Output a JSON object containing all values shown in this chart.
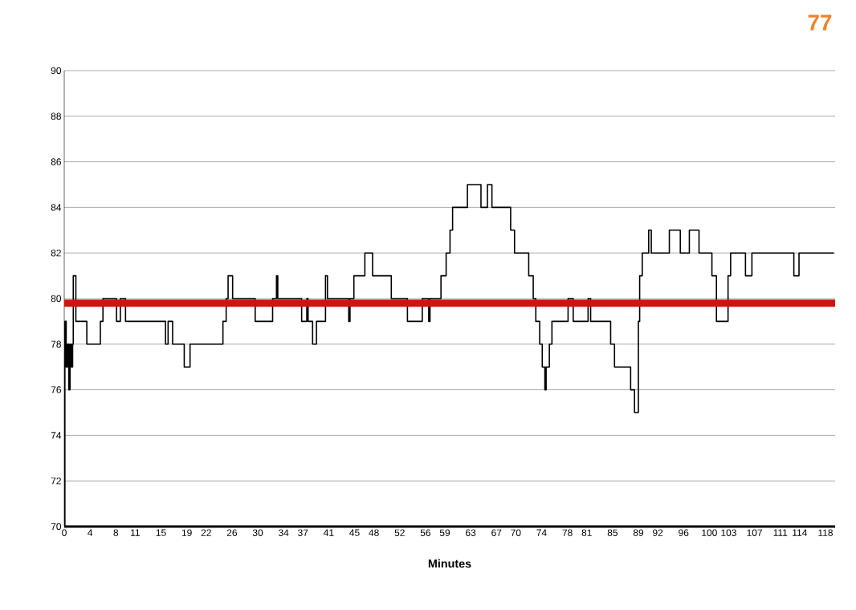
{
  "chart_data": {
    "type": "step",
    "xlabel": "Minutes",
    "annotations": [
      "77"
    ],
    "x": [
      0,
      0.1,
      0.3,
      0.5,
      0.7,
      0.9,
      1.1,
      1.3,
      1.4,
      1.8,
      3.5,
      5.6,
      6.0,
      8.1,
      8.7,
      9.5,
      15.7,
      16.1,
      16.8,
      18.6,
      19.5,
      24.6,
      25.1,
      25.4,
      26.1,
      29.6,
      32.3,
      32.9,
      33.1,
      36.8,
      37.6,
      37.8,
      38.5,
      39.1,
      40.5,
      40.8,
      44.1,
      44.3,
      44.9,
      46.6,
      47.8,
      50.7,
      53.2,
      55.5,
      56.5,
      56.7,
      58.4,
      59.2,
      59.8,
      60.2,
      62.5,
      64.6,
      65.6,
      66.3,
      69.2,
      69.8,
      72.0,
      72.7,
      73.1,
      73.7,
      74.1,
      74.5,
      74.7,
      75.2,
      75.6,
      78.1,
      78.9,
      81.2,
      81.6,
      84.7,
      85.3,
      87.8,
      88.4,
      89.0,
      89.2,
      89.6,
      90.6,
      91.0,
      93.8,
      95.5,
      96.9,
      98.4,
      100.4,
      101.1,
      102.9,
      103.3,
      105.6,
      106.6,
      113.1,
      113.9,
      119.3
    ],
    "values": [
      70,
      79,
      77,
      78,
      76,
      78,
      77,
      78,
      81,
      79,
      78,
      79,
      80,
      79,
      80,
      79,
      78,
      79,
      78,
      77,
      78,
      79,
      80,
      81,
      80,
      79,
      80,
      81,
      80,
      79,
      80,
      79,
      78,
      79,
      81,
      80,
      79,
      80,
      81,
      82,
      81,
      80,
      79,
      80,
      79,
      80,
      81,
      82,
      83,
      84,
      85,
      84,
      85,
      84,
      83,
      82,
      81,
      80,
      79,
      78,
      77,
      76,
      77,
      78,
      79,
      80,
      79,
      80,
      79,
      78,
      77,
      76,
      75,
      79,
      81,
      82,
      83,
      82,
      83,
      82,
      83,
      82,
      81,
      79,
      81,
      82,
      81,
      82,
      81,
      82,
      82
    ],
    "color": "#000000",
    "xlim": [
      0,
      119.5
    ],
    "ylim": [
      70,
      90
    ],
    "xticks": [
      0,
      4,
      8,
      11,
      15,
      19,
      22,
      26,
      30,
      34,
      37,
      41,
      45,
      48,
      52,
      56,
      59,
      63,
      67,
      70,
      74,
      78,
      81,
      85,
      89,
      92,
      96,
      100,
      103,
      107,
      111,
      114,
      118
    ],
    "yticks": [
      70,
      72,
      74,
      76,
      78,
      80,
      82,
      84,
      86,
      88,
      90
    ],
    "grid": "y",
    "ref_lines": [
      {
        "axis": "y",
        "value": 79.8,
        "color": "#cc1414"
      }
    ]
  }
}
